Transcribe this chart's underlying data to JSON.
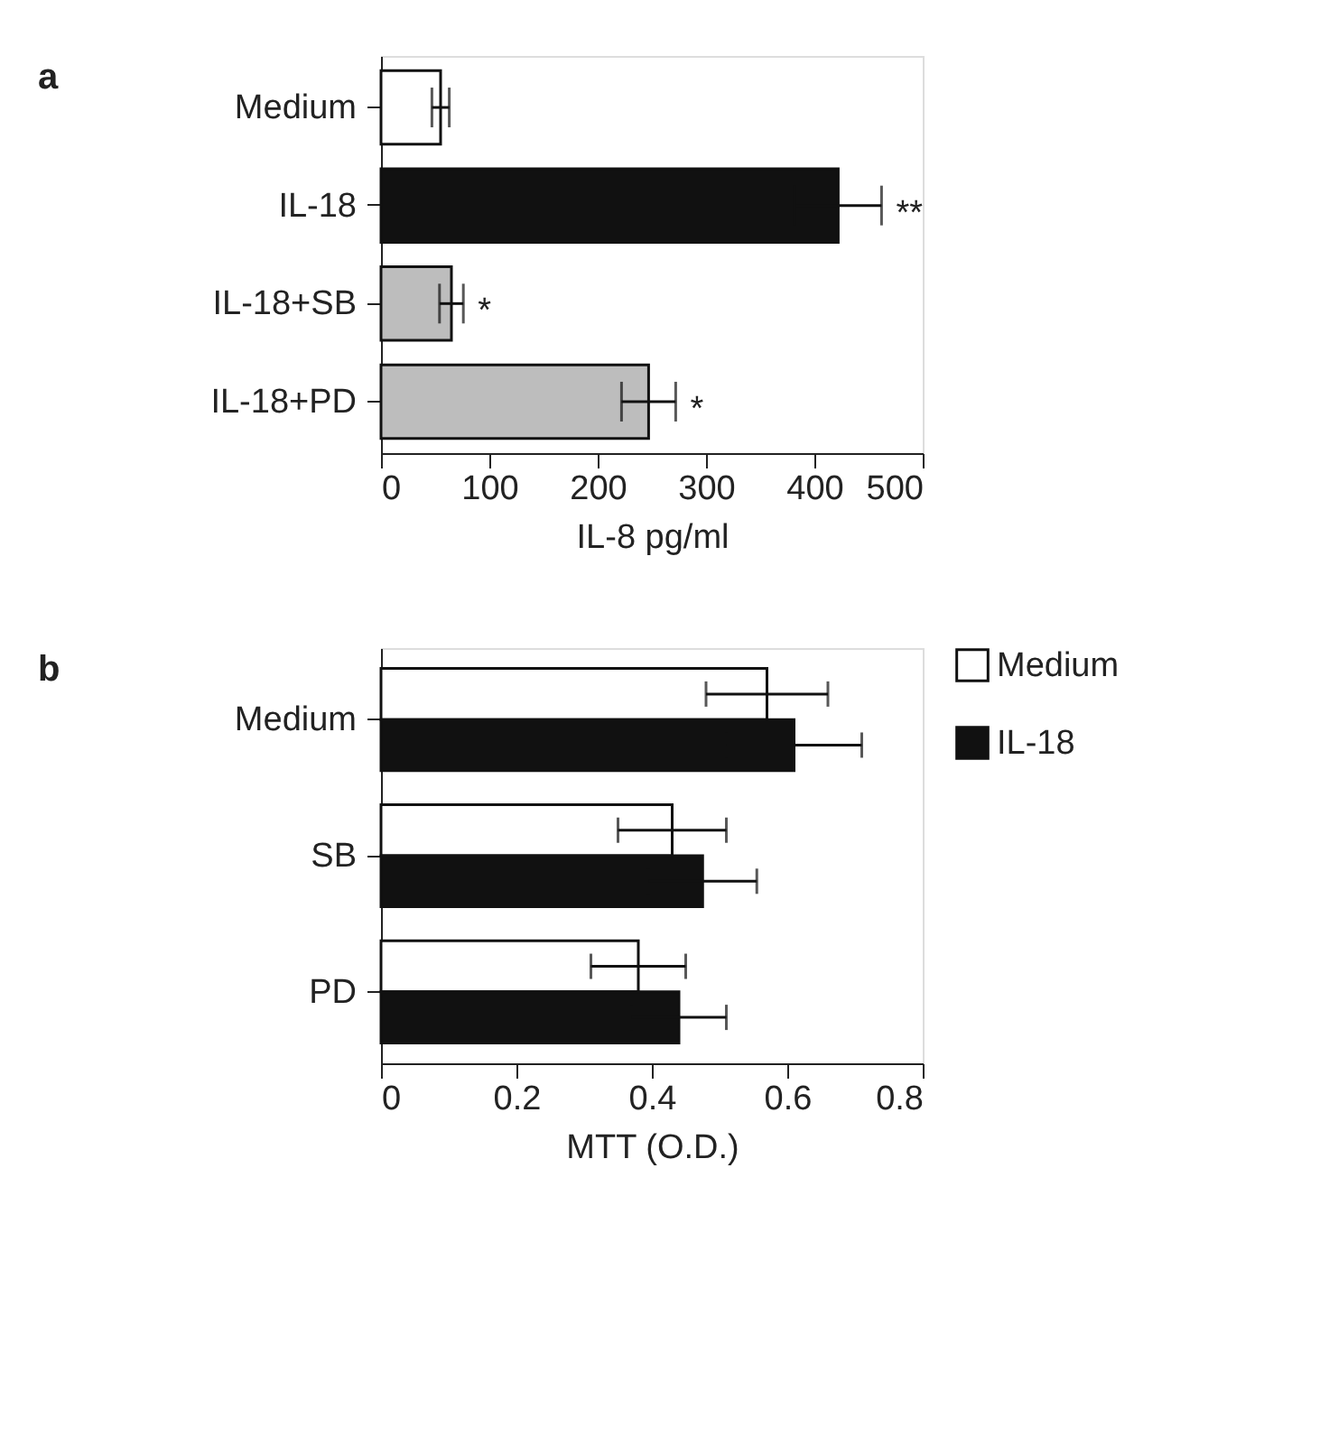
{
  "chart_data": [
    {
      "type": "bar",
      "orientation": "horizontal",
      "title": "a",
      "xlabel": "IL-8 pg/ml",
      "categories": [
        "Medium",
        "IL-18",
        "IL-18+SB",
        "IL-18+PD"
      ],
      "values": [
        55,
        422,
        65,
        247
      ],
      "errors": [
        8,
        40,
        11,
        25
      ],
      "colors": [
        "#ffffff",
        "#111111",
        "#bdbdbd",
        "#bdbdbd"
      ],
      "xlim": [
        0,
        500
      ],
      "xticks": [
        0,
        100,
        200,
        300,
        400,
        500
      ],
      "grid": false,
      "annotations": [
        {
          "text": "**",
          "x": 462,
          "y": "IL-18"
        },
        {
          "text": "*",
          "x": 76,
          "y": "IL-18+SB"
        },
        {
          "text": "*",
          "x": 272,
          "y": "IL-18+PD"
        }
      ]
    },
    {
      "type": "bar",
      "orientation": "horizontal",
      "title": "b",
      "xlabel": "MTT (O.D.)",
      "categories": [
        "Medium",
        "SB",
        "PD"
      ],
      "xlim": [
        0,
        0.8
      ],
      "xticks": [
        {
          "value": 0,
          "label": "0"
        },
        0.2,
        0.4,
        0.6,
        0.8
      ],
      "grid": false,
      "legend": "top right",
      "series": [
        {
          "name": "Medium",
          "color": "#ffffff",
          "values": [
            0.57,
            0.43,
            0.38
          ],
          "errors": [
            0.09,
            0.08,
            0.07
          ]
        },
        {
          "name": "IL-18",
          "color": "#111111",
          "values": [
            0.61,
            0.475,
            0.44
          ],
          "errors": [
            0.1,
            0.08,
            0.07
          ]
        }
      ]
    }
  ]
}
